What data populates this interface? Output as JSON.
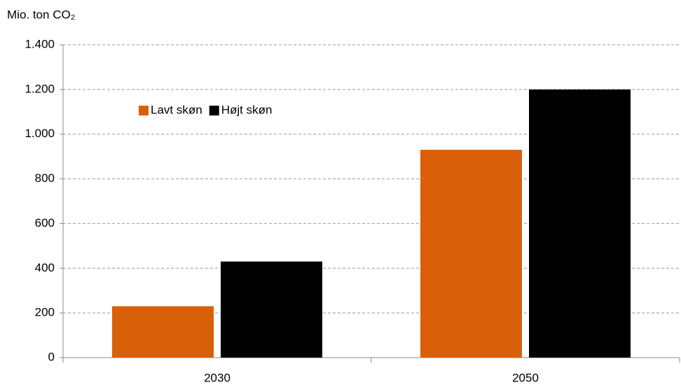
{
  "chart_data": {
    "type": "bar",
    "y_label": "Mio. ton CO₂",
    "categories": [
      "2030",
      "2050"
    ],
    "series": [
      {
        "name": "Lavt skøn",
        "color": "#d9600b",
        "values": [
          230,
          930
        ]
      },
      {
        "name": "Højt skøn",
        "color": "#000000",
        "values": [
          430,
          1200
        ]
      }
    ],
    "ylim": [
      0,
      1400
    ],
    "yticks": [
      0,
      200,
      400,
      600,
      800,
      {
        "value": 1000,
        "label": "1.000"
      },
      {
        "value": 1200,
        "label": "1.200"
      },
      {
        "value": 1400,
        "label": "1.400"
      }
    ],
    "grid": true,
    "legend": "top-left"
  }
}
